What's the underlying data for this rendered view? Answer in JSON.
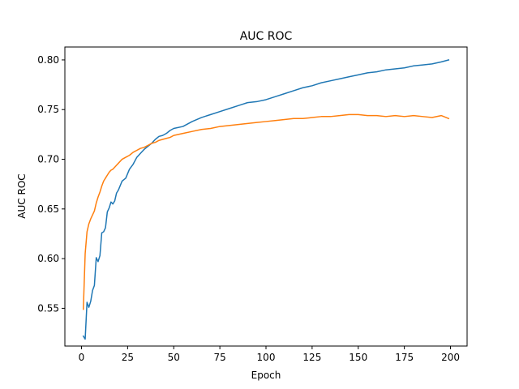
{
  "chart_data": {
    "type": "line",
    "title": "AUC ROC",
    "xlabel": "Epoch",
    "ylabel": "AUC ROC",
    "xlim": [
      -9,
      209
    ],
    "ylim": [
      0.512,
      0.813
    ],
    "xticks": [
      0,
      25,
      50,
      75,
      100,
      125,
      150,
      175,
      200
    ],
    "yticks": [
      0.55,
      0.6,
      0.65,
      0.7,
      0.75,
      0.8
    ],
    "ytick_labels": [
      "0.55",
      "0.60",
      "0.65",
      "0.70",
      "0.75",
      "0.80"
    ],
    "grid": false,
    "legend": "none",
    "series": [
      {
        "color": "#1f77b4",
        "x": [
          1,
          2,
          3,
          4,
          5,
          6,
          7,
          8,
          9,
          10,
          11,
          12,
          13,
          14,
          15,
          16,
          17,
          18,
          19,
          20,
          22,
          24,
          26,
          28,
          30,
          32,
          34,
          36,
          38,
          40,
          42,
          44,
          46,
          48,
          50,
          55,
          60,
          65,
          70,
          75,
          80,
          85,
          90,
          95,
          100,
          105,
          110,
          115,
          120,
          125,
          130,
          135,
          140,
          145,
          150,
          155,
          160,
          165,
          170,
          175,
          180,
          185,
          190,
          195,
          199
        ],
        "y": [
          0.522,
          0.519,
          0.556,
          0.551,
          0.557,
          0.568,
          0.573,
          0.601,
          0.597,
          0.603,
          0.626,
          0.627,
          0.631,
          0.647,
          0.651,
          0.657,
          0.655,
          0.658,
          0.666,
          0.669,
          0.678,
          0.681,
          0.69,
          0.695,
          0.702,
          0.706,
          0.71,
          0.713,
          0.716,
          0.72,
          0.723,
          0.724,
          0.726,
          0.729,
          0.731,
          0.733,
          0.738,
          0.742,
          0.745,
          0.748,
          0.751,
          0.754,
          0.757,
          0.758,
          0.76,
          0.763,
          0.766,
          0.769,
          0.772,
          0.774,
          0.777,
          0.779,
          0.781,
          0.783,
          0.785,
          0.787,
          0.788,
          0.79,
          0.791,
          0.792,
          0.794,
          0.795,
          0.796,
          0.798,
          0.8
        ]
      },
      {
        "color": "#ff7f0e",
        "x": [
          1,
          2,
          3,
          4,
          5,
          6,
          7,
          8,
          9,
          10,
          11,
          12,
          13,
          14,
          15,
          16,
          17,
          18,
          19,
          20,
          22,
          24,
          26,
          28,
          30,
          32,
          34,
          36,
          38,
          40,
          42,
          44,
          46,
          48,
          50,
          55,
          60,
          65,
          70,
          75,
          80,
          85,
          90,
          95,
          100,
          105,
          110,
          115,
          120,
          125,
          130,
          135,
          140,
          145,
          150,
          155,
          160,
          165,
          170,
          175,
          180,
          185,
          190,
          195,
          199
        ],
        "y": [
          0.549,
          0.605,
          0.627,
          0.635,
          0.64,
          0.644,
          0.648,
          0.656,
          0.662,
          0.667,
          0.673,
          0.678,
          0.681,
          0.684,
          0.687,
          0.689,
          0.69,
          0.692,
          0.694,
          0.696,
          0.7,
          0.702,
          0.704,
          0.707,
          0.709,
          0.711,
          0.712,
          0.714,
          0.716,
          0.717,
          0.719,
          0.72,
          0.721,
          0.722,
          0.724,
          0.726,
          0.728,
          0.73,
          0.731,
          0.733,
          0.734,
          0.735,
          0.736,
          0.737,
          0.738,
          0.739,
          0.74,
          0.741,
          0.741,
          0.742,
          0.743,
          0.743,
          0.744,
          0.745,
          0.745,
          0.744,
          0.744,
          0.743,
          0.744,
          0.743,
          0.744,
          0.743,
          0.742,
          0.744,
          0.741
        ]
      }
    ]
  }
}
